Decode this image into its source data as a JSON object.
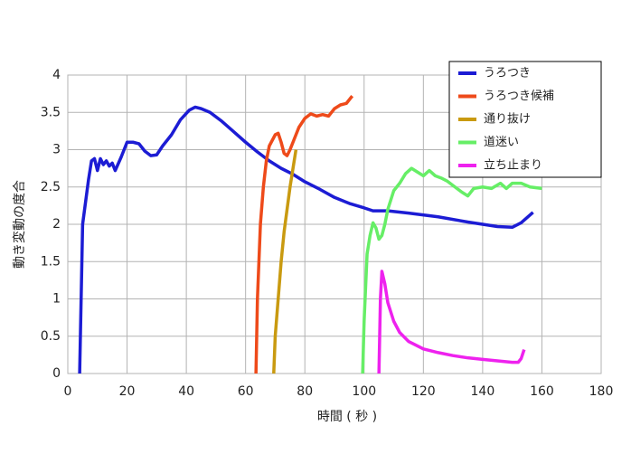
{
  "chart_data": {
    "type": "line",
    "xlabel": "時間 ( 秒 )",
    "ylabel": "動き変動の度合",
    "xlim": [
      0,
      180
    ],
    "xticks": [
      0,
      20,
      40,
      60,
      80,
      100,
      120,
      140,
      160,
      180
    ],
    "ylim": [
      0,
      4
    ],
    "yticks": [
      0,
      0.5,
      1,
      1.5,
      2,
      2.5,
      3,
      3.5,
      4
    ],
    "grid": true,
    "legend": "upper right",
    "series": [
      {
        "name": "うろつき",
        "color": "#1c1cd4",
        "x": [
          4,
          5,
          7,
          8,
          9,
          10,
          11,
          12,
          13,
          14,
          15,
          16,
          18,
          20,
          22,
          24,
          26,
          28,
          30,
          32,
          35,
          38,
          41,
          43,
          45,
          48,
          52,
          56,
          60,
          64,
          68,
          72,
          76,
          80,
          85,
          90,
          95,
          100,
          103,
          108,
          115,
          125,
          135,
          145,
          150,
          153,
          157
        ],
        "values": [
          0,
          2,
          2.6,
          2.85,
          2.88,
          2.72,
          2.88,
          2.8,
          2.85,
          2.78,
          2.82,
          2.72,
          2.9,
          3.1,
          3.1,
          3.08,
          2.98,
          2.92,
          2.93,
          3.05,
          3.2,
          3.4,
          3.53,
          3.57,
          3.55,
          3.5,
          3.38,
          3.24,
          3.1,
          2.97,
          2.85,
          2.75,
          2.67,
          2.57,
          2.47,
          2.36,
          2.28,
          2.22,
          2.18,
          2.18,
          2.15,
          2.1,
          2.03,
          1.97,
          1.96,
          2.02,
          2.16
        ]
      },
      {
        "name": "うろつき候補",
        "color": "#ee4a1a",
        "x": [
          63.5,
          64,
          65,
          66,
          67,
          68,
          70,
          71,
          72,
          73,
          74,
          75,
          76,
          78,
          80,
          82,
          84,
          86,
          88,
          90,
          92,
          94,
          96
        ],
        "values": [
          0,
          1,
          2,
          2.5,
          2.85,
          3.05,
          3.2,
          3.22,
          3.1,
          2.95,
          2.92,
          3,
          3.1,
          3.3,
          3.42,
          3.48,
          3.45,
          3.47,
          3.45,
          3.55,
          3.6,
          3.62,
          3.72
        ]
      },
      {
        "name": "通り抜け",
        "color": "#c99a10",
        "x": [
          69.5,
          70,
          71,
          72,
          73,
          74,
          75,
          76,
          77
        ],
        "values": [
          0,
          0.5,
          1,
          1.5,
          1.9,
          2.2,
          2.5,
          2.75,
          3
        ]
      },
      {
        "name": "道迷い",
        "color": "#66ee66",
        "x": [
          99.5,
          100,
          101,
          102,
          103,
          104,
          105,
          106,
          107,
          108,
          110,
          112,
          114,
          116,
          118,
          120,
          122,
          124,
          126,
          128,
          130,
          133,
          135,
          137,
          140,
          143,
          146,
          148,
          150,
          153,
          156,
          160
        ],
        "values": [
          0,
          0.7,
          1.6,
          1.85,
          2.02,
          1.95,
          1.8,
          1.85,
          2,
          2.2,
          2.45,
          2.55,
          2.68,
          2.75,
          2.7,
          2.65,
          2.72,
          2.65,
          2.62,
          2.58,
          2.52,
          2.43,
          2.38,
          2.48,
          2.5,
          2.48,
          2.55,
          2.48,
          2.55,
          2.55,
          2.5,
          2.48
        ]
      },
      {
        "name": "立ち止まり",
        "color": "#ee22ee",
        "x": [
          105,
          105.5,
          106,
          107,
          108,
          110,
          112,
          115,
          120,
          125,
          130,
          135,
          140,
          145,
          150,
          152,
          153,
          154
        ],
        "values": [
          0,
          1,
          1.37,
          1.2,
          0.95,
          0.7,
          0.55,
          0.43,
          0.33,
          0.28,
          0.24,
          0.21,
          0.19,
          0.17,
          0.15,
          0.15,
          0.2,
          0.32
        ]
      }
    ]
  }
}
